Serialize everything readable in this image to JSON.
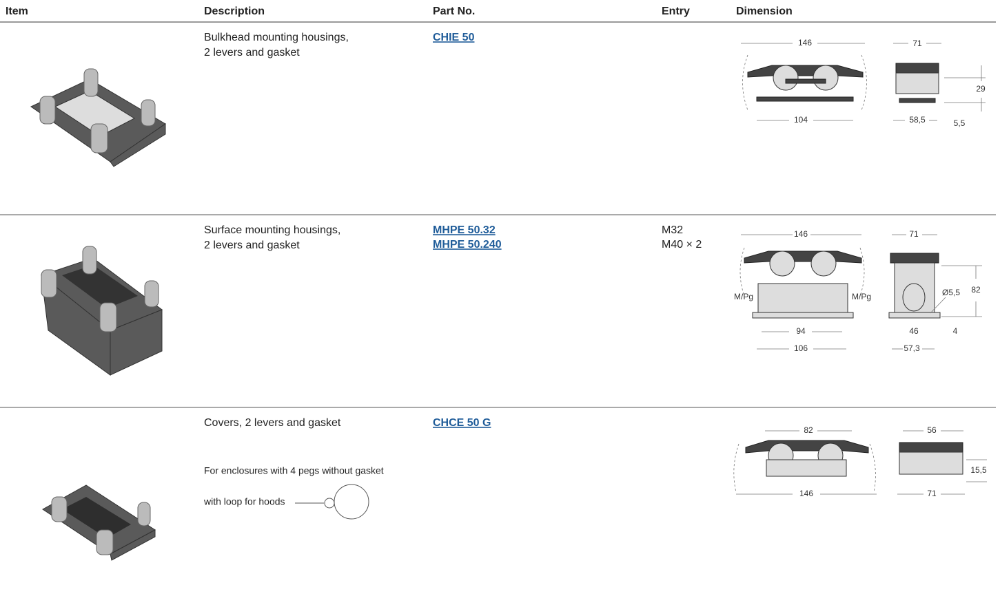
{
  "header": {
    "columns": [
      "Item",
      "Description",
      "Part No.",
      "Entry",
      "Dimension"
    ]
  },
  "rows": [
    {
      "description": [
        "Bulkhead mounting housings,",
        "2 levers and gasket"
      ],
      "part_numbers": [
        "CHIE 50"
      ],
      "dimensions": [
        "146",
        "71",
        "29",
        "104",
        "58,5",
        "5,5"
      ]
    },
    {
      "description": [
        "Surface mounting housings,",
        "2 levers and gasket"
      ],
      "part_numbers": [
        "MHPE 50.32",
        "MHPE 50.240"
      ],
      "entry": [
        "M32",
        "M40 × 2"
      ],
      "dimensions": [
        "146",
        "71",
        "M/Pg",
        "M/Pg",
        "82",
        "Ø5,5",
        "94",
        "46",
        "4",
        "106",
        "57,3"
      ]
    },
    {
      "description": [
        "Covers, 2 levers and gasket"
      ],
      "notes": [
        "For enclosures with 4 pegs without gasket",
        "with loop for hoods"
      ],
      "part_numbers": [
        "CHCE 50 G"
      ],
      "dimensions": [
        "82",
        "56",
        "15,5",
        "146",
        "71"
      ]
    }
  ]
}
